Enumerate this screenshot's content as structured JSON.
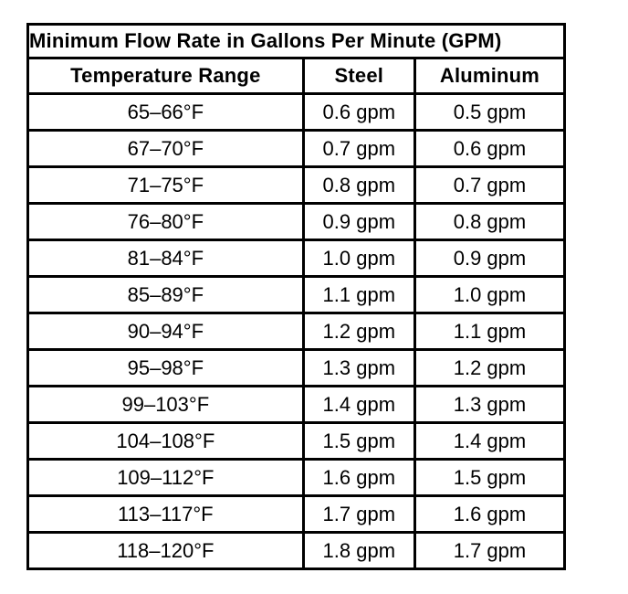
{
  "chart_data": {
    "type": "table",
    "title": "Minimum Flow Rate in Gallons Per Minute (GPM)",
    "columns": [
      "Temperature Range",
      "Steel",
      "Aluminum"
    ],
    "rows": [
      [
        "65–66°F",
        "0.6 gpm",
        "0.5 gpm"
      ],
      [
        "67–70°F",
        "0.7 gpm",
        "0.6 gpm"
      ],
      [
        "71–75°F",
        "0.8 gpm",
        "0.7 gpm"
      ],
      [
        "76–80°F",
        "0.9 gpm",
        "0.8 gpm"
      ],
      [
        "81–84°F",
        "1.0 gpm",
        "0.9 gpm"
      ],
      [
        "85–89°F",
        "1.1 gpm",
        "1.0 gpm"
      ],
      [
        "90–94°F",
        "1.2 gpm",
        "1.1 gpm"
      ],
      [
        "95–98°F",
        "1.3 gpm",
        "1.2 gpm"
      ],
      [
        "99–103°F",
        "1.4 gpm",
        "1.3 gpm"
      ],
      [
        "104–108°F",
        "1.5 gpm",
        "1.4 gpm"
      ],
      [
        "109–112°F",
        "1.6 gpm",
        "1.5 gpm"
      ],
      [
        "113–117°F",
        "1.7 gpm",
        "1.6 gpm"
      ],
      [
        "118–120°F",
        "1.8 gpm",
        "1.7 gpm"
      ]
    ],
    "units": "gpm",
    "layout": {
      "grid": true,
      "border_color": "#000000",
      "background": "#ffffff",
      "text_color": "#000000"
    }
  }
}
